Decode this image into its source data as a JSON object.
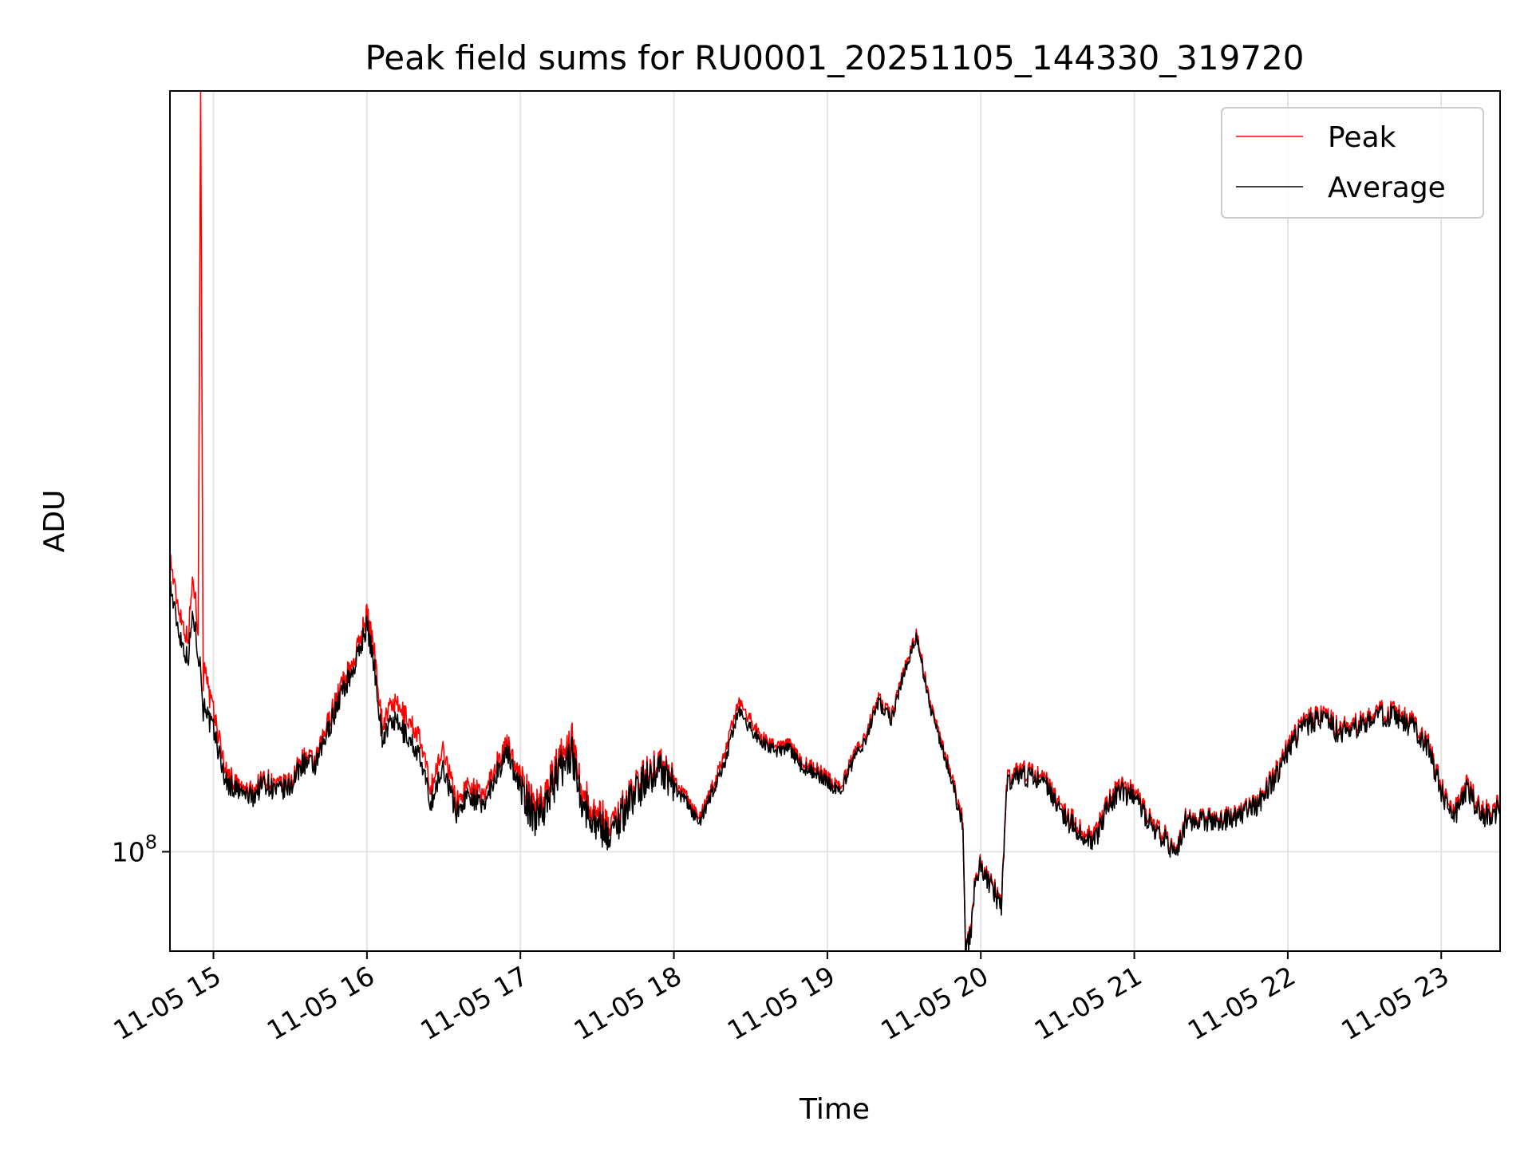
{
  "chart_data": {
    "type": "line",
    "title": "Peak field sums for RU0001_20251105_144330_319720",
    "xlabel": "Time",
    "ylabel": "ADU",
    "yscale": "log",
    "ylim": [
      84000000,
      380000000
    ],
    "xlim": [
      "2025-11-05 14:43",
      "2025-11-05 23:23"
    ],
    "grid": true,
    "legend_position": "top-right",
    "x_ticks": [
      "11-05 15",
      "11-05 16",
      "11-05 17",
      "11-05 18",
      "11-05 19",
      "11-05 20",
      "11-05 21",
      "11-05 22",
      "11-05 23"
    ],
    "y_ticks": [
      {
        "value": 100000000,
        "base": "10",
        "exponent": "8"
      }
    ],
    "series": [
      {
        "name": "Peak",
        "color": "#ff0000",
        "x": [
          "14:43",
          "14:45",
          "14:47",
          "14:50",
          "14:52",
          "14:54",
          "14:55",
          "14:56",
          "14:57",
          "14:58",
          "15:00",
          "15:03",
          "15:05",
          "15:10",
          "15:15",
          "15:20",
          "15:25",
          "15:30",
          "15:35",
          "15:40",
          "15:45",
          "15:50",
          "15:55",
          "16:00",
          "16:03",
          "16:06",
          "16:10",
          "16:15",
          "16:20",
          "16:25",
          "16:30",
          "16:35",
          "16:40",
          "16:45",
          "16:50",
          "16:55",
          "17:00",
          "17:05",
          "17:10",
          "17:15",
          "17:20",
          "17:25",
          "17:30",
          "17:35",
          "17:40",
          "17:45",
          "17:50",
          "17:55",
          "18:00",
          "18:05",
          "18:10",
          "18:15",
          "18:20",
          "18:25",
          "18:30",
          "18:35",
          "18:40",
          "18:45",
          "18:50",
          "18:55",
          "19:00",
          "19:05",
          "19:10",
          "19:15",
          "19:20",
          "19:25",
          "19:30",
          "19:35",
          "19:40",
          "19:45",
          "19:50",
          "19:53",
          "19:54",
          "19:56",
          "19:57",
          "19:58",
          "20:00",
          "20:05",
          "20:08",
          "20:10",
          "20:15",
          "20:20",
          "20:25",
          "20:30",
          "20:35",
          "20:40",
          "20:45",
          "20:50",
          "20:55",
          "21:00",
          "21:05",
          "21:10",
          "21:15",
          "21:18",
          "21:20",
          "21:25",
          "21:30",
          "21:35",
          "21:40",
          "21:45",
          "21:50",
          "21:55",
          "22:00",
          "22:05",
          "22:10",
          "22:15",
          "22:20",
          "22:25",
          "22:30",
          "22:35",
          "22:40",
          "22:45",
          "22:50",
          "22:55",
          "23:00",
          "23:05",
          "23:10",
          "23:15",
          "23:20",
          "23:23"
        ],
        "values": [
          168000000,
          158000000,
          152000000,
          145000000,
          162000000,
          148000000,
          380000000,
          135000000,
          140000000,
          132000000,
          128000000,
          120000000,
          115000000,
          112000000,
          111000000,
          114000000,
          112000000,
          113000000,
          118000000,
          117000000,
          126000000,
          134000000,
          140000000,
          152000000,
          142000000,
          125000000,
          130000000,
          127000000,
          123000000,
          112000000,
          120000000,
          109000000,
          113000000,
          110000000,
          116000000,
          121000000,
          114000000,
          108000000,
          111000000,
          117000000,
          122000000,
          110000000,
          107000000,
          105000000,
          108000000,
          112000000,
          115000000,
          117000000,
          113000000,
          110000000,
          106000000,
          112000000,
          119000000,
          130000000,
          126000000,
          122000000,
          120000000,
          121000000,
          117000000,
          116000000,
          114000000,
          112000000,
          118000000,
          123000000,
          131000000,
          127000000,
          138000000,
          147000000,
          130000000,
          121000000,
          112000000,
          106000000,
          84000000,
          87000000,
          92000000,
          96000000,
          98000000,
          94000000,
          91000000,
          113000000,
          115000000,
          115000000,
          114000000,
          110000000,
          106000000,
          104000000,
          103000000,
          110000000,
          112000000,
          111000000,
          107000000,
          104000000,
          101000000,
          102000000,
          106000000,
          106000000,
          106000000,
          106000000,
          107000000,
          108000000,
          110000000,
          115000000,
          120000000,
          125000000,
          127000000,
          127000000,
          124000000,
          125000000,
          126000000,
          128000000,
          128000000,
          127000000,
          125000000,
          121000000,
          112000000,
          107000000,
          113000000,
          108000000,
          107000000,
          110000000
        ]
      },
      {
        "name": "Average",
        "color": "#000000",
        "x": [
          "14:43",
          "14:45",
          "14:47",
          "14:50",
          "14:52",
          "14:54",
          "14:55",
          "14:56",
          "14:57",
          "14:58",
          "15:00",
          "15:03",
          "15:05",
          "15:10",
          "15:15",
          "15:20",
          "15:25",
          "15:30",
          "15:35",
          "15:40",
          "15:45",
          "15:50",
          "15:55",
          "16:00",
          "16:03",
          "16:06",
          "16:10",
          "16:15",
          "16:20",
          "16:25",
          "16:30",
          "16:35",
          "16:40",
          "16:45",
          "16:50",
          "16:55",
          "17:00",
          "17:05",
          "17:10",
          "17:15",
          "17:20",
          "17:25",
          "17:30",
          "17:35",
          "17:40",
          "17:45",
          "17:50",
          "17:55",
          "18:00",
          "18:05",
          "18:10",
          "18:15",
          "18:20",
          "18:25",
          "18:30",
          "18:35",
          "18:40",
          "18:45",
          "18:50",
          "18:55",
          "19:00",
          "19:05",
          "19:10",
          "19:15",
          "19:20",
          "19:25",
          "19:30",
          "19:35",
          "19:40",
          "19:45",
          "19:50",
          "19:53",
          "19:54",
          "19:56",
          "19:57",
          "19:58",
          "20:00",
          "20:05",
          "20:08",
          "20:10",
          "20:15",
          "20:20",
          "20:25",
          "20:30",
          "20:35",
          "20:40",
          "20:45",
          "20:50",
          "20:55",
          "21:00",
          "21:05",
          "21:10",
          "21:15",
          "21:18",
          "21:20",
          "21:25",
          "21:30",
          "21:35",
          "21:40",
          "21:45",
          "21:50",
          "21:55",
          "22:00",
          "22:05",
          "22:10",
          "22:15",
          "22:20",
          "22:25",
          "22:30",
          "22:35",
          "22:40",
          "22:45",
          "22:50",
          "22:55",
          "23:00",
          "23:05",
          "23:10",
          "23:15",
          "23:20",
          "23:23"
        ],
        "values": [
          160000000,
          152000000,
          146000000,
          140000000,
          152000000,
          142000000,
          138000000,
          128000000,
          130000000,
          126000000,
          124000000,
          117000000,
          113000000,
          111000000,
          110000000,
          113000000,
          111000000,
          112000000,
          117000000,
          116000000,
          124000000,
          132000000,
          138000000,
          149000000,
          138000000,
          122000000,
          126000000,
          123000000,
          119000000,
          109000000,
          116000000,
          107000000,
          111000000,
          108000000,
          114000000,
          119000000,
          112000000,
          106000000,
          109000000,
          115000000,
          119000000,
          108000000,
          105000000,
          103000000,
          107000000,
          111000000,
          114000000,
          116000000,
          112000000,
          109000000,
          105000000,
          111000000,
          117000000,
          128000000,
          124000000,
          121000000,
          119000000,
          120000000,
          116000000,
          115000000,
          113000000,
          111000000,
          117000000,
          122000000,
          130000000,
          126000000,
          137000000,
          146000000,
          129000000,
          120000000,
          111000000,
          105000000,
          83800000,
          86500000,
          91500000,
          95500000,
          97500000,
          93500000,
          90500000,
          112000000,
          114000000,
          114000000,
          113000000,
          109000000,
          105000000,
          103000000,
          102000000,
          109000000,
          111000000,
          110000000,
          106000000,
          103000000,
          100500000,
          101500000,
          105500000,
          105500000,
          105500000,
          105500000,
          106500000,
          107500000,
          109500000,
          114000000,
          119000000,
          124000000,
          126000000,
          126000000,
          123000000,
          124000000,
          125000000,
          127000000,
          127000000,
          126000000,
          124000000,
          120000000,
          111000000,
          106000000,
          112000000,
          107000000,
          106000000,
          109000000
        ]
      }
    ]
  }
}
